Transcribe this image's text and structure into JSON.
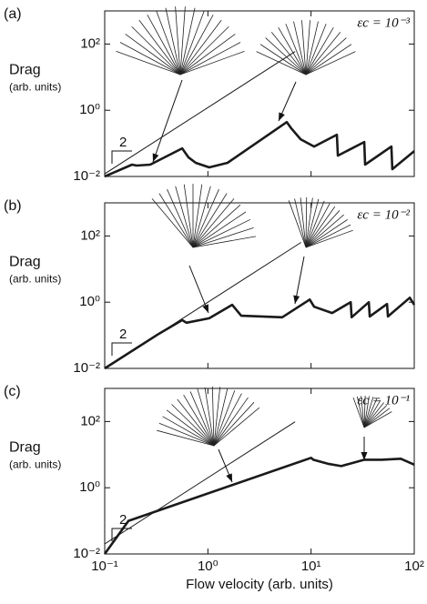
{
  "chart_data": [
    {
      "type": "line",
      "panel_label": "(a)",
      "y_label": "Drag",
      "y_label_sub": "(arb. units)",
      "annotation": "εc = 10⁻³",
      "slope_label": "2",
      "x_scale": "log",
      "y_scale": "log",
      "xlim": [
        0.1,
        100
      ],
      "ylim": [
        0.01,
        1000
      ],
      "xticks": [
        0.1,
        1,
        10,
        100
      ],
      "yticks": [
        {
          "value": 0.01,
          "label": "10⁻²"
        },
        {
          "value": 1,
          "label": "10⁰"
        },
        {
          "value": 100,
          "label": "10²"
        }
      ],
      "series": [
        {
          "color": "#1a1a1a",
          "x": [
            0.1,
            7
          ],
          "values": [
            0.012,
            59
          ]
        },
        {
          "color": "#1a1a1a",
          "x": [
            0.1,
            0.184,
            0.204,
            0.276,
            0.563,
            0.65,
            0.762,
            1.03,
            1.55,
            5.82,
            6.44,
            7.92,
            10.7,
            17.8,
            18.2,
            32.8,
            33.4,
            60,
            61.3,
            100
          ],
          "values": [
            0.01,
            0.0227,
            0.0213,
            0.0227,
            0.0707,
            0.0376,
            0.0258,
            0.0188,
            0.0258,
            0.44,
            0.283,
            0.133,
            0.08,
            0.182,
            0.0426,
            0.11,
            0.0227,
            0.08,
            0.0166,
            0.0584
          ]
        }
      ]
    },
    {
      "type": "line",
      "panel_label": "(b)",
      "y_label": "Drag",
      "y_label_sub": "(arb. units)",
      "annotation": "εc = 10⁻²",
      "slope_label": "2",
      "x_scale": "log",
      "y_scale": "log",
      "xlim": [
        0.1,
        100
      ],
      "ylim": [
        0.01,
        1000
      ],
      "xticks": [
        0.1,
        1,
        10,
        100
      ],
      "yticks": [
        {
          "value": 0.01,
          "label": "10⁻²"
        },
        {
          "value": 1,
          "label": "10⁰"
        },
        {
          "value": 100,
          "label": "10²"
        }
      ],
      "series": [
        {
          "color": "#1a1a1a",
          "x": [
            0.1,
            8
          ],
          "values": [
            0.01,
            64
          ]
        },
        {
          "color": "#1a1a1a",
          "x": [
            0.1,
            0.338,
            0.563,
            0.62,
            1.03,
            1.72,
            2.1,
            5.26,
            9.7,
            10.7,
            16,
            24.2,
            24.7,
            36.3,
            37,
            54.5,
            55.6,
            90.6,
            100
          ],
          "values": [
            0.01,
            0.113,
            0.288,
            0.24,
            0.326,
            0.83,
            0.39,
            0.35,
            1.2,
            0.73,
            0.47,
            1.0,
            0.35,
            1.0,
            0.37,
            0.88,
            0.37,
            1.36,
            0.83
          ]
        }
      ]
    },
    {
      "type": "line",
      "panel_label": "(c)",
      "y_label": "Drag",
      "y_label_sub": "(arb. units)",
      "annotation": "εc = 10⁻¹",
      "slope_label": "2",
      "x_label": "Flow velocity (arb. units)",
      "x_scale": "log",
      "y_scale": "log",
      "xlim": [
        0.1,
        100
      ],
      "ylim": [
        0.01,
        1000
      ],
      "xticks": [
        {
          "value": 0.1,
          "label": "10⁻¹"
        },
        {
          "value": 1,
          "label": "10⁰"
        },
        {
          "value": 10,
          "label": "10¹"
        },
        {
          "value": 100,
          "label": "10²"
        }
      ],
      "yticks": [
        {
          "value": 0.01,
          "label": "10⁻²"
        },
        {
          "value": 1,
          "label": "10⁰"
        },
        {
          "value": 100,
          "label": "10²"
        }
      ],
      "series": [
        {
          "color": "#1a1a1a",
          "x": [
            0.1,
            7
          ],
          "values": [
            0.02,
            98
          ]
        },
        {
          "color": "#1a1a1a",
          "x": [
            0.1,
            0.17,
            10,
            10.5,
            14.5,
            19.6,
            32.8,
            48,
            74,
            100
          ],
          "values": [
            0.01,
            0.1,
            8,
            7,
            5.3,
            4.5,
            7,
            7,
            7.5,
            5
          ]
        }
      ]
    }
  ]
}
